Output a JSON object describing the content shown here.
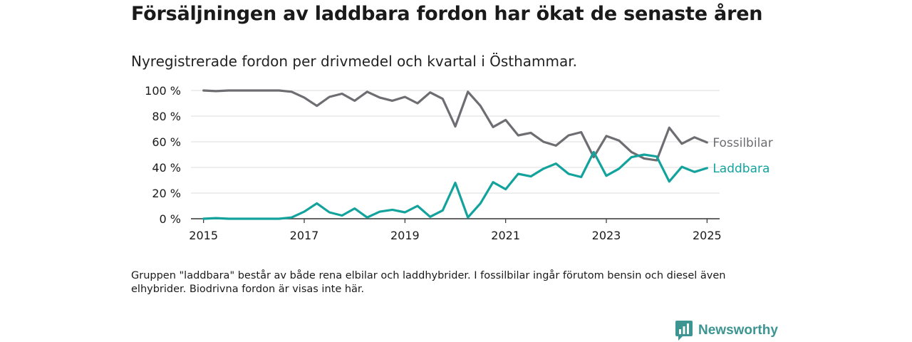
{
  "header": {
    "title": "Försäljningen av laddbara fordon har ökat de senaste åren",
    "subtitle": "Nyregistrerade fordon per drivmedel och kvartal i Östhammar."
  },
  "footer": {
    "note": "Gruppen \"laddbara\" består av både rena elbilar och laddhybrider. I fossilbilar ingår förutom bensin och diesel även elhybrider. Biodrivna fordon är visas inte här.",
    "brand": "Newsworthy",
    "brand_icon": "bar-chart-speech-icon",
    "brand_color": "#3d9592"
  },
  "chart_data": {
    "type": "line",
    "x_start_year": 2015,
    "x_step": 0.25,
    "xlim": [
      2014.75,
      2025.25
    ],
    "ylim": [
      0,
      100
    ],
    "y_ticks": [
      0,
      20,
      40,
      60,
      80,
      100
    ],
    "y_tick_labels": [
      "0 %",
      "20 %",
      "40 %",
      "60 %",
      "80 %",
      "100 %"
    ],
    "x_ticks": [
      2015,
      2017,
      2019,
      2021,
      2023,
      2025
    ],
    "x_tick_labels": [
      "2015",
      "2017",
      "2019",
      "2021",
      "2023",
      "2025"
    ],
    "grid": "horizontal",
    "series": [
      {
        "name": "Fossilbilar",
        "color": "#6e6d72",
        "values": [
          100,
          99.5,
          100,
          100,
          100,
          100,
          100,
          99,
          94.5,
          88,
          95,
          97.5,
          92,
          99,
          94.5,
          92,
          95,
          90,
          98.5,
          93.5,
          72,
          99,
          88,
          71.5,
          77,
          65,
          67,
          60,
          57,
          65,
          67.5,
          48,
          64.5,
          61,
          52,
          47,
          45.5,
          71,
          58.5,
          63.5,
          59.5
        ]
      },
      {
        "name": "Laddbara",
        "color": "#13a39c",
        "values": [
          0,
          0.5,
          0,
          0,
          0,
          0,
          0,
          1,
          5.5,
          12,
          5,
          2.5,
          8,
          1,
          5.5,
          7,
          5,
          10,
          1.5,
          6.5,
          28,
          1,
          12,
          28.5,
          23,
          35,
          33,
          39,
          43,
          35,
          32.5,
          52,
          33.5,
          39,
          48,
          50,
          48.5,
          29,
          40.5,
          36.5,
          39.5
        ]
      }
    ]
  }
}
